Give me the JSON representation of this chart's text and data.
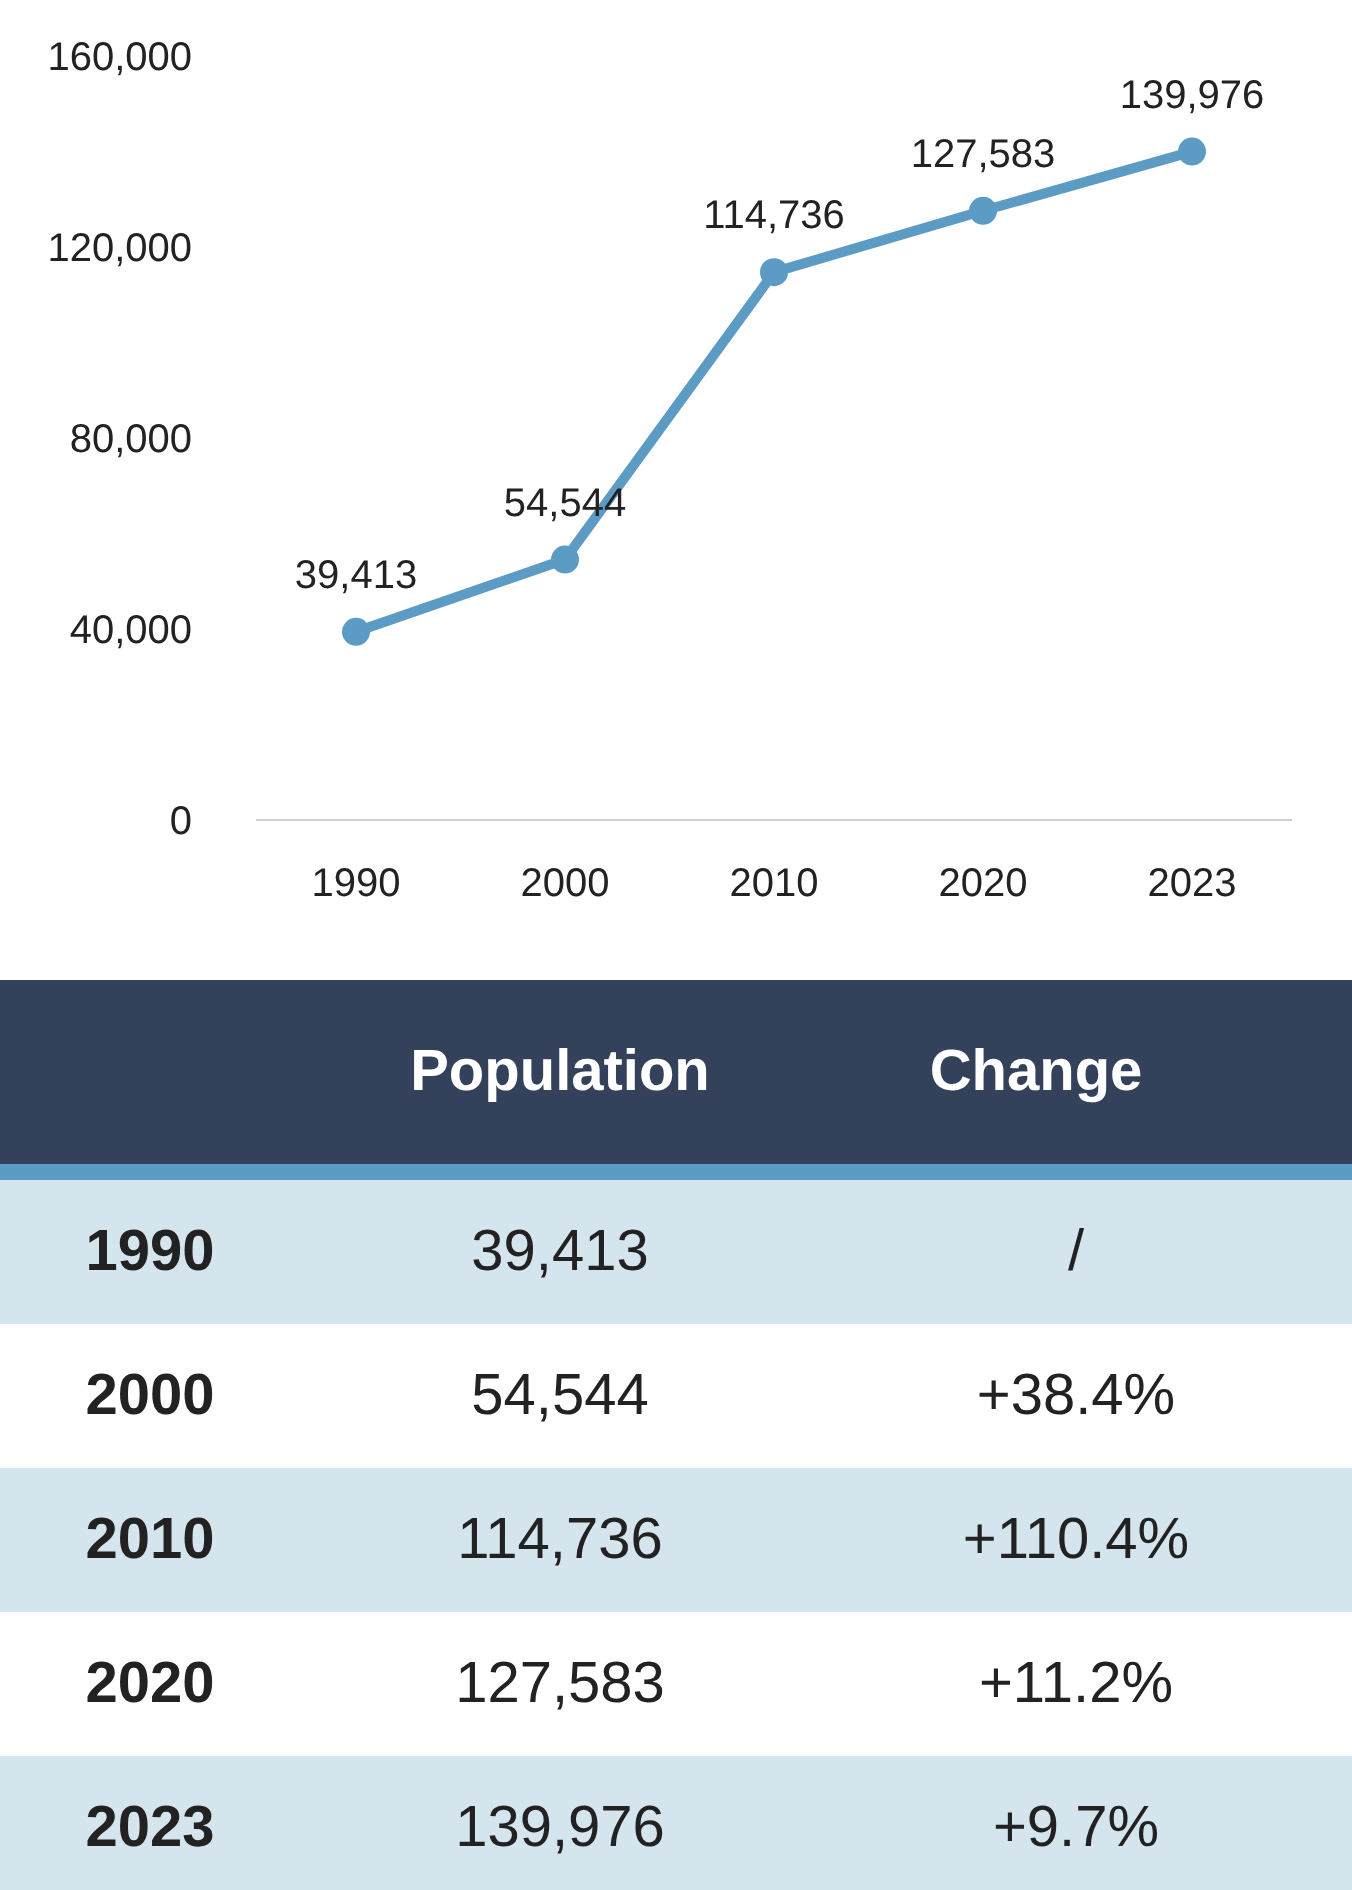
{
  "chart_data": {
    "type": "line",
    "categories": [
      "1990",
      "2000",
      "2010",
      "2020",
      "2023"
    ],
    "series": [
      {
        "name": "Population",
        "color": "#5b9bc4",
        "values": [
          39413,
          54544,
          114736,
          127583,
          139976
        ],
        "value_labels": [
          "39,413",
          "54,544",
          "114,736",
          "127,583",
          "139,976"
        ]
      }
    ],
    "ylim": [
      0,
      160000
    ],
    "yticks": [
      0,
      {
        "value": 40000,
        "label": "40,000"
      },
      {
        "value": 80000,
        "label": "80,000"
      },
      {
        "value": 120000,
        "label": "120,000"
      },
      {
        "value": 160000,
        "label": "160,000"
      }
    ],
    "grid": false,
    "marker": "circle",
    "line_style": "solid",
    "annotations": [
      "Change",
      "39,413",
      "/",
      "54,544",
      "+38.4%",
      "114,736",
      "+110.4%",
      "127,583",
      "+11.2%",
      "139,976",
      "+9.7%"
    ]
  }
}
